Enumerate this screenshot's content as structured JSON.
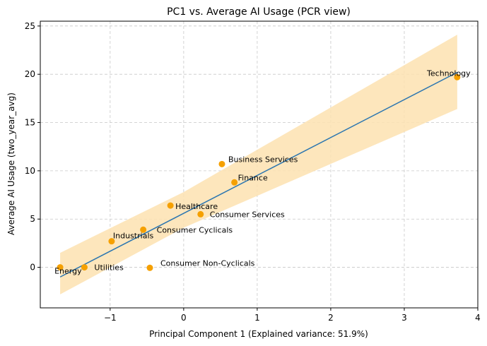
{
  "chart_data": {
    "type": "scatter",
    "title": "PC1 vs. Average AI Usage (PCR view)",
    "xlabel": "Principal Component 1 (Explained variance: 51.9%)",
    "ylabel": "Average AI Usage (two_year_avg)",
    "xlim": [
      -1.95,
      4.0
    ],
    "ylim": [
      -4.2,
      25.5
    ],
    "xticks": [
      -1,
      0,
      1,
      2,
      3,
      4
    ],
    "xtick_labels": [
      "−1",
      "0",
      "1",
      "2",
      "3",
      "4"
    ],
    "yticks": [
      0,
      5,
      10,
      15,
      20,
      25
    ],
    "ytick_labels": [
      "0",
      "5",
      "10",
      "15",
      "20",
      "25"
    ],
    "grid": true,
    "points": [
      {
        "label": "Energy",
        "x": -1.68,
        "y": 0.0
      },
      {
        "label": "Utilities",
        "x": -1.35,
        "y": 0.0
      },
      {
        "label": "Industrials",
        "x": -0.98,
        "y": 2.7
      },
      {
        "label": "Consumer Cyclicals",
        "x": -0.55,
        "y": 3.9
      },
      {
        "label": "Consumer Non-Cyclicals",
        "x": -0.46,
        "y": -0.05
      },
      {
        "label": "Healthcare",
        "x": -0.18,
        "y": 6.4
      },
      {
        "label": "Consumer Services",
        "x": 0.23,
        "y": 5.5
      },
      {
        "label": "Business Services",
        "x": 0.52,
        "y": 10.7
      },
      {
        "label": "Finance",
        "x": 0.69,
        "y": 8.8
      },
      {
        "label": "Technology",
        "x": 3.72,
        "y": 19.7
      }
    ],
    "fit_line": {
      "x": [
        -1.68,
        3.72
      ],
      "y": [
        -1.0,
        20.2
      ]
    },
    "confidence_band": {
      "x": [
        -1.68,
        0.0,
        3.72
      ],
      "lower": [
        -2.8,
        4.1,
        16.4
      ],
      "upper": [
        1.5,
        7.8,
        24.1
      ]
    },
    "colors": {
      "points": "#f5a000",
      "line": "#2c76b0",
      "band": "#fde2b0",
      "grid": "#c8c8c8"
    }
  }
}
